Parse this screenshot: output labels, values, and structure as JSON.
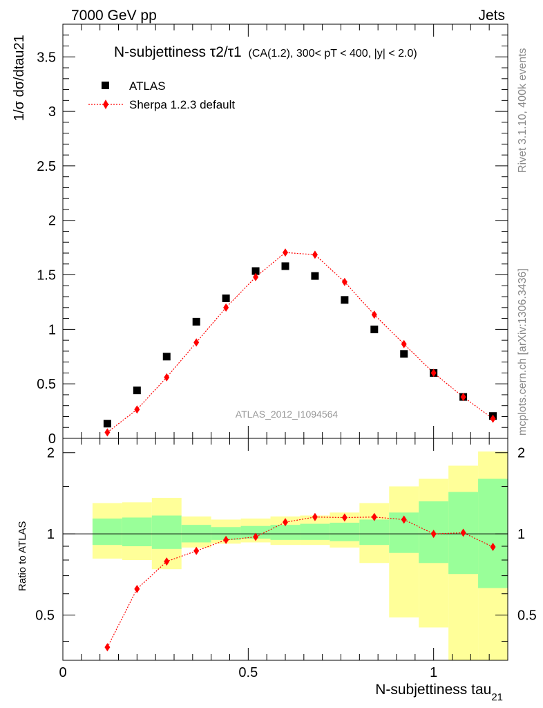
{
  "header": {
    "left": "7000 GeV pp",
    "right": "Jets"
  },
  "side": {
    "rivet": "Rivet 3.1.10,  400k events",
    "mcplots": "mcplots.cern.ch [arXiv:1306.3436]"
  },
  "chart_data": [
    {
      "type": "scatter",
      "title_main": "N-subjettiness",
      "title_ratio": "τ2/τ1",
      "title_rest": "(CA(1.2), 300< pT < 400, |y| < 2.0)",
      "ylabel": "1/σ dσ/dtau21",
      "watermark": "ATLAS_2012_I1094564",
      "xlim": [
        0,
        1.2
      ],
      "ylim": [
        0,
        3.8
      ],
      "yticks": [
        {
          "v": 0,
          "label": "0"
        },
        {
          "v": 0.5,
          "label": "0.5"
        },
        {
          "v": 1,
          "label": "1"
        },
        {
          "v": 1.5,
          "label": "1.5"
        },
        {
          "v": 2,
          "label": "2"
        },
        {
          "v": 2.5,
          "label": "2.5"
        },
        {
          "v": 3,
          "label": "3"
        },
        {
          "v": 3.5,
          "label": "3.5"
        }
      ],
      "series": [
        {
          "name": "ATLAS",
          "marker": "square",
          "color": "#000000",
          "x": [
            0.12,
            0.2,
            0.28,
            0.36,
            0.44,
            0.52,
            0.6,
            0.68,
            0.76,
            0.84,
            0.92,
            1.0,
            1.08,
            1.16
          ],
          "y": [
            0.135,
            0.44,
            0.75,
            1.07,
            1.285,
            1.535,
            1.58,
            1.49,
            1.27,
            1.0,
            0.775,
            0.6,
            0.38,
            0.205
          ]
        },
        {
          "name": "Sherpa 1.2.3 default",
          "marker": "diamond",
          "color": "#ff0000",
          "x": [
            0.12,
            0.2,
            0.28,
            0.36,
            0.44,
            0.52,
            0.6,
            0.68,
            0.76,
            0.84,
            0.92,
            1.0,
            1.08,
            1.16
          ],
          "y": [
            0.055,
            0.265,
            0.56,
            0.88,
            1.2,
            1.48,
            1.705,
            1.685,
            1.435,
            1.135,
            0.865,
            0.6,
            0.38,
            0.18
          ]
        }
      ]
    },
    {
      "type": "ratio",
      "ylabel": "Ratio to ATLAS",
      "xlabel": "N-subjettiness tau21",
      "xlim": [
        0,
        1.2
      ],
      "ylim": [
        0.34,
        2.26
      ],
      "xticks": [
        {
          "v": 0,
          "label": "0"
        },
        {
          "v": 0.5,
          "label": "0.5"
        },
        {
          "v": 1,
          "label": "1"
        }
      ],
      "yticks": [
        {
          "v": 0.5,
          "label": "0.5"
        },
        {
          "v": 1,
          "label": "1"
        },
        {
          "v": 2,
          "label": "2"
        }
      ],
      "bands": {
        "x_low": [
          0.08,
          0.16,
          0.24,
          0.32,
          0.4,
          0.48,
          0.56,
          0.64,
          0.72,
          0.8,
          0.88,
          0.96,
          1.04,
          1.12
        ],
        "x_high": [
          0.16,
          0.24,
          0.32,
          0.4,
          0.48,
          0.56,
          0.64,
          0.72,
          0.8,
          0.88,
          0.96,
          1.04,
          1.12,
          1.2
        ],
        "inner_low": [
          0.91,
          0.9,
          0.88,
          0.93,
          0.95,
          0.96,
          0.95,
          0.95,
          0.94,
          0.91,
          0.85,
          0.78,
          0.71,
          0.63
        ],
        "inner_high": [
          1.14,
          1.15,
          1.17,
          1.08,
          1.06,
          1.07,
          1.08,
          1.09,
          1.1,
          1.13,
          1.2,
          1.32,
          1.43,
          1.6
        ],
        "outer_low": [
          0.81,
          0.8,
          0.74,
          0.89,
          0.92,
          0.93,
          0.91,
          0.91,
          0.89,
          0.78,
          0.49,
          0.45,
          0.34,
          0.34
        ],
        "outer_high": [
          1.3,
          1.31,
          1.36,
          1.16,
          1.13,
          1.14,
          1.16,
          1.17,
          1.2,
          1.3,
          1.5,
          1.6,
          1.79,
          2.02
        ],
        "inner_color": "#99ff99",
        "outer_color": "#ffff99"
      },
      "series": [
        {
          "name": "Sherpa 1.2.3 default",
          "color": "#ff0000",
          "x": [
            0.12,
            0.2,
            0.28,
            0.36,
            0.44,
            0.52,
            0.6,
            0.68,
            0.76,
            0.84,
            0.92,
            1.0,
            1.08,
            1.16
          ],
          "y": [
            0.38,
            0.625,
            0.79,
            0.865,
            0.95,
            0.975,
            1.105,
            1.155,
            1.15,
            1.155,
            1.13,
            1.0,
            1.01,
            0.895
          ]
        }
      ]
    }
  ]
}
